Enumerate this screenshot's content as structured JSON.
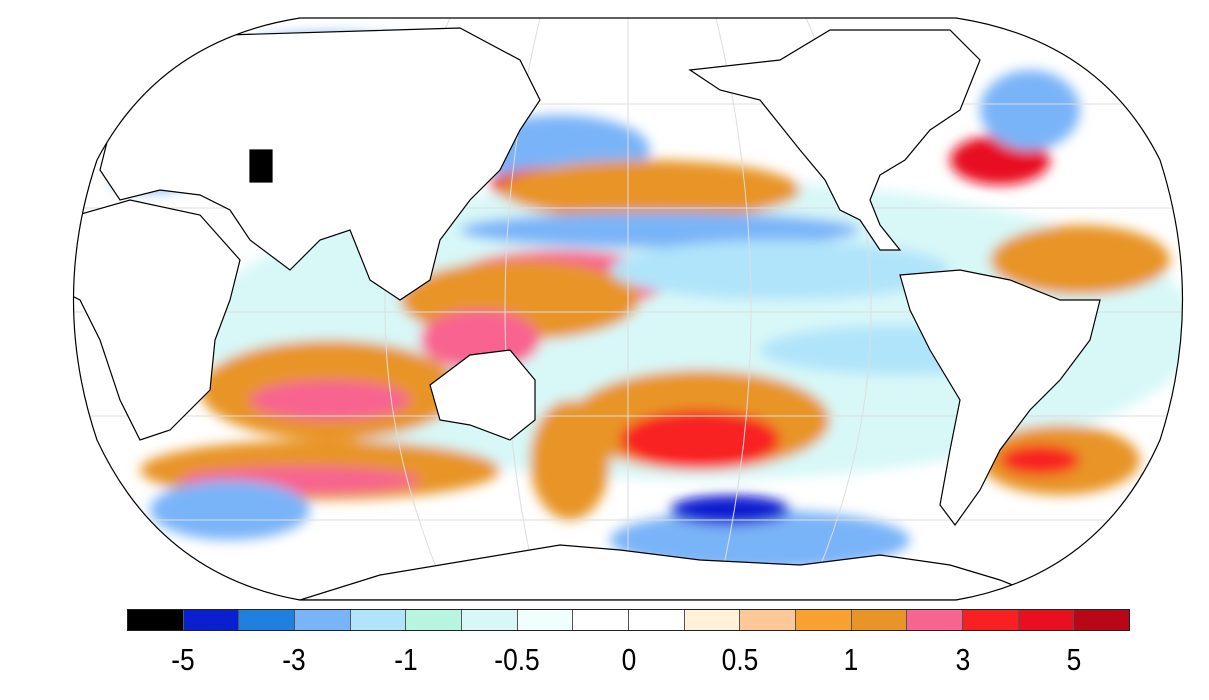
{
  "map": {
    "projection": "Robinson",
    "ocean_background": "#ffffff",
    "land_color": "#ffffff",
    "coastline_color": "#000000"
  },
  "colorbar": {
    "colors": [
      "#000000",
      "#0a1fd0",
      "#2080e0",
      "#7ab4f8",
      "#b0e4fa",
      "#b8f5e0",
      "#d8f8f8",
      "#f0fefe",
      "#ffffff",
      "#ffffff",
      "#fff2d8",
      "#fcc898",
      "#f8a030",
      "#e89428",
      "#f86490",
      "#f82020",
      "#e81020",
      "#b80818"
    ],
    "tick_labels": [
      "-5",
      "-3",
      "-1",
      "-0.5",
      "0",
      "0.5",
      "1",
      "3",
      "5"
    ]
  }
}
